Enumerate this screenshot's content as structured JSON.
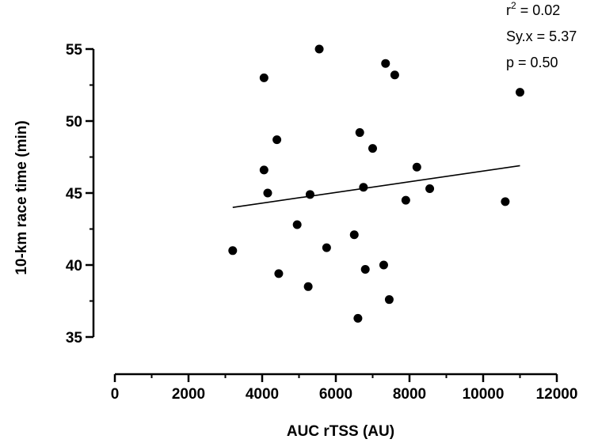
{
  "chart_data": {
    "type": "scatter",
    "xlabel": "AUC rTSS (AU)",
    "ylabel": "10-km race time (min)",
    "xlim": [
      0,
      12000
    ],
    "ylim": [
      35,
      55
    ],
    "x_ticks": [
      0,
      2000,
      4000,
      6000,
      8000,
      10000,
      12000
    ],
    "x_tick_labels": [
      "0",
      "2000",
      "4000",
      "6000",
      "8000",
      "10000",
      "12000"
    ],
    "y_ticks": [
      35,
      40,
      45,
      50,
      55
    ],
    "y_tick_labels": [
      "35",
      "40",
      "45",
      "50",
      "55"
    ],
    "points": [
      {
        "x": 3200,
        "y": 41.0
      },
      {
        "x": 4050,
        "y": 53.0
      },
      {
        "x": 4050,
        "y": 46.6
      },
      {
        "x": 4150,
        "y": 45.0
      },
      {
        "x": 4400,
        "y": 48.7
      },
      {
        "x": 4450,
        "y": 39.4
      },
      {
        "x": 4950,
        "y": 42.8
      },
      {
        "x": 5250,
        "y": 38.5
      },
      {
        "x": 5300,
        "y": 44.9
      },
      {
        "x": 5550,
        "y": 55.0
      },
      {
        "x": 5750,
        "y": 41.2
      },
      {
        "x": 6500,
        "y": 42.1
      },
      {
        "x": 6600,
        "y": 36.3
      },
      {
        "x": 6650,
        "y": 49.2
      },
      {
        "x": 6750,
        "y": 45.4
      },
      {
        "x": 6800,
        "y": 39.7
      },
      {
        "x": 7000,
        "y": 48.1
      },
      {
        "x": 7300,
        "y": 40.0
      },
      {
        "x": 7350,
        "y": 54.0
      },
      {
        "x": 7450,
        "y": 37.6
      },
      {
        "x": 7600,
        "y": 53.2
      },
      {
        "x": 7900,
        "y": 44.5
      },
      {
        "x": 8200,
        "y": 46.8
      },
      {
        "x": 8550,
        "y": 45.3
      },
      {
        "x": 10600,
        "y": 44.4
      },
      {
        "x": 11000,
        "y": 52.0
      }
    ],
    "regression_line": {
      "x": [
        3200,
        11000
      ],
      "y": [
        44.0,
        46.9
      ]
    },
    "annotations": {
      "r2_prefix": "r",
      "r2_sup": "2",
      "r2_value": " = 0.02",
      "syx": "Sy.x = 5.37",
      "p": "p =  0.50"
    },
    "legend": "none",
    "grid": false
  }
}
